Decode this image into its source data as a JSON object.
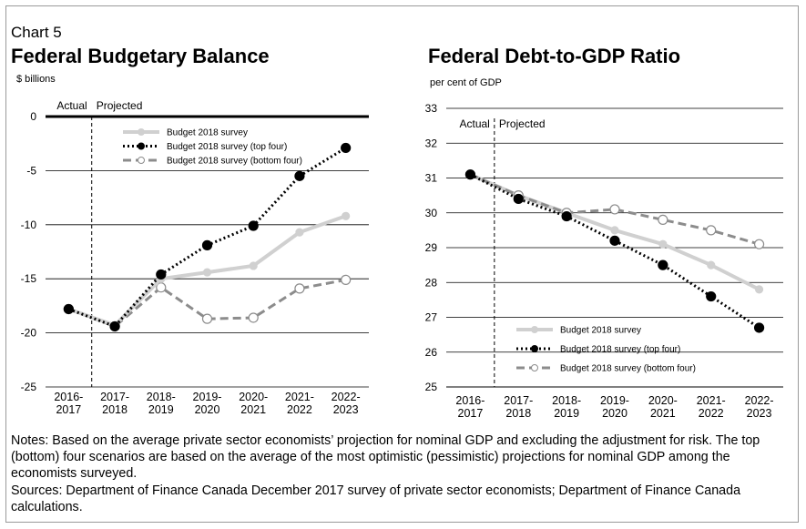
{
  "header": {
    "chart_number": "Chart 5"
  },
  "footer": {
    "notes": "Notes: Based on the average private sector economists’ projection for nominal GDP and excluding the adjustment for risk. The top (bottom) four scenarios are based on the average of the most optimistic (pessimistic) projections for nominal GDP among the economists surveyed.",
    "sources": "Sources: Department of Finance Canada December 2017 survey of private sector economists; Department of Finance Canada calculations."
  },
  "colors": {
    "survey": "#d0d0d0",
    "top_four": "#000000",
    "bottom_four": "#8c8c8c"
  },
  "chart_data": [
    {
      "type": "line",
      "title": "Federal Budgetary Balance",
      "ylabel": "$ billions",
      "categories": [
        [
          "2016-",
          "2017"
        ],
        [
          "2017-",
          "2018"
        ],
        [
          "2018-",
          "2019"
        ],
        [
          "2019-",
          "2020"
        ],
        [
          "2020-",
          "2021"
        ],
        [
          "2021-",
          "2022"
        ],
        [
          "2022-",
          "2023"
        ]
      ],
      "ylim": [
        -25,
        0
      ],
      "yticks": [
        0,
        -5,
        -10,
        -15,
        -20,
        -25
      ],
      "actual_label": "Actual",
      "projected_label": "Projected",
      "legend_position": "top-right",
      "series": [
        {
          "name": "Budget 2018 survey",
          "values": [
            -17.8,
            -19.3,
            -15.0,
            -14.4,
            -13.8,
            -10.7,
            -9.2
          ]
        },
        {
          "name": "Budget 2018 survey (top four)",
          "values": [
            -17.8,
            -19.4,
            -14.6,
            -11.9,
            -10.1,
            -5.5,
            -2.9
          ]
        },
        {
          "name": "Budget 2018 survey (bottom four)",
          "values": [
            -17.8,
            -19.4,
            -15.8,
            -18.7,
            -18.6,
            -15.9,
            -15.1
          ]
        }
      ]
    },
    {
      "type": "line",
      "title": "Federal Debt-to-GDP Ratio",
      "ylabel": "per cent of GDP",
      "categories": [
        [
          "2016-",
          "2017"
        ],
        [
          "2017-",
          "2018"
        ],
        [
          "2018-",
          "2019"
        ],
        [
          "2019-",
          "2020"
        ],
        [
          "2020-",
          "2021"
        ],
        [
          "2021-",
          "2022"
        ],
        [
          "2022-",
          "2023"
        ]
      ],
      "ylim": [
        25,
        33
      ],
      "yticks": [
        33,
        32,
        31,
        30,
        29,
        28,
        27,
        26,
        25
      ],
      "actual_label": "Actual",
      "projected_label": "Projected",
      "legend_position": "bottom-left",
      "series": [
        {
          "name": "Budget 2018 survey",
          "values": [
            31.1,
            30.5,
            30.0,
            29.5,
            29.1,
            28.5,
            27.8
          ]
        },
        {
          "name": "Budget 2018 survey (top four)",
          "values": [
            31.1,
            30.4,
            29.9,
            29.2,
            28.5,
            27.6,
            26.7
          ]
        },
        {
          "name": "Budget 2018 survey (bottom four)",
          "values": [
            31.1,
            30.5,
            30.0,
            30.1,
            29.8,
            29.5,
            29.1
          ]
        }
      ]
    }
  ]
}
